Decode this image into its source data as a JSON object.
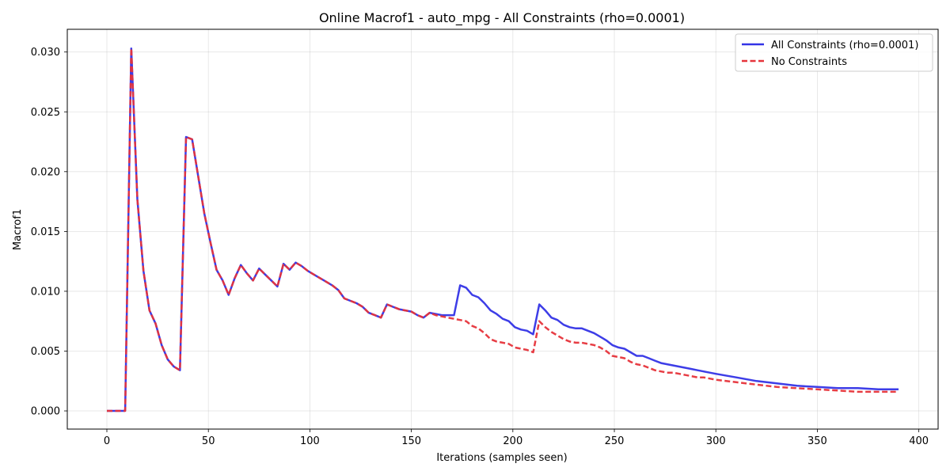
{
  "chart_data": {
    "type": "line",
    "title": "Online Macrof1 - auto_mpg - All Constraints (rho=0.0001)",
    "xlabel": "Iterations (samples seen)",
    "ylabel": "Macrof1",
    "xlim": [
      -19.5,
      409.5
    ],
    "ylim": [
      -0.00152,
      0.0319
    ],
    "xticks": [
      0,
      50,
      100,
      150,
      200,
      250,
      300,
      350,
      400
    ],
    "xtick_labels": [
      "0",
      "50",
      "100",
      "150",
      "200",
      "250",
      "300",
      "350",
      "400"
    ],
    "yticks": [
      0,
      0.005,
      0.01,
      0.015,
      0.02,
      0.025,
      0.03
    ],
    "ytick_labels": [
      "0.000",
      "0.005",
      "0.010",
      "0.015",
      "0.020",
      "0.025",
      "0.030"
    ],
    "grid": true,
    "legend_position": "top-right",
    "series": [
      {
        "name": "All Constraints (rho=0.0001)",
        "color": "#3333e6",
        "style": "solid",
        "x": [
          0,
          3,
          6,
          9,
          12,
          15,
          18,
          21,
          24,
          27,
          30,
          33,
          36,
          39,
          42,
          45,
          48,
          51,
          54,
          57,
          60,
          63,
          66,
          69,
          72,
          75,
          78,
          81,
          84,
          87,
          90,
          93,
          96,
          99,
          102,
          105,
          108,
          111,
          114,
          117,
          120,
          123,
          126,
          129,
          132,
          135,
          138,
          141,
          144,
          147,
          150,
          153,
          156,
          159,
          162,
          165,
          168,
          171,
          174,
          177,
          180,
          183,
          186,
          189,
          192,
          195,
          198,
          201,
          204,
          207,
          210,
          213,
          216,
          219,
          222,
          225,
          228,
          231,
          234,
          237,
          240,
          243,
          246,
          249,
          252,
          255,
          258,
          261,
          264,
          267,
          270,
          273,
          276,
          279,
          282,
          285,
          288,
          291,
          294,
          297,
          300,
          310,
          320,
          330,
          340,
          350,
          360,
          370,
          380,
          390
        ],
        "values": [
          0,
          0,
          0,
          0,
          0.0303,
          0.0177,
          0.0117,
          0.0084,
          0.0073,
          0.0055,
          0.0043,
          0.0037,
          0.0034,
          0.0229,
          0.0227,
          0.0196,
          0.0165,
          0.0141,
          0.0118,
          0.0109,
          0.0097,
          0.0111,
          0.0122,
          0.0115,
          0.0109,
          0.0119,
          0.0114,
          0.0109,
          0.0104,
          0.0123,
          0.0118,
          0.0124,
          0.0121,
          0.0117,
          0.0114,
          0.0111,
          0.0108,
          0.0105,
          0.0101,
          0.0094,
          0.0092,
          0.009,
          0.0087,
          0.0082,
          0.008,
          0.0078,
          0.0089,
          0.0087,
          0.0085,
          0.0084,
          0.0083,
          0.008,
          0.0078,
          0.0082,
          0.0081,
          0.008,
          0.008,
          0.008,
          0.0105,
          0.0103,
          0.0097,
          0.0095,
          0.009,
          0.0084,
          0.0081,
          0.0077,
          0.0075,
          0.007,
          0.0068,
          0.0067,
          0.0064,
          0.0089,
          0.0084,
          0.0078,
          0.0076,
          0.0072,
          0.007,
          0.0069,
          0.0069,
          0.0067,
          0.0065,
          0.0062,
          0.0059,
          0.0055,
          0.0053,
          0.0052,
          0.0049,
          0.0046,
          0.0046,
          0.0044,
          0.0042,
          0.004,
          0.0039,
          0.0038,
          0.0037,
          0.0036,
          0.0035,
          0.0034,
          0.0033,
          0.0032,
          0.0031,
          0.0028,
          0.0025,
          0.0023,
          0.0021,
          0.002,
          0.0019,
          0.0019,
          0.0018,
          0.0018
        ]
      },
      {
        "name": "No Constraints",
        "color": "#e6333a",
        "style": "dashed",
        "x": [
          0,
          3,
          6,
          9,
          12,
          15,
          18,
          21,
          24,
          27,
          30,
          33,
          36,
          39,
          42,
          45,
          48,
          51,
          54,
          57,
          60,
          63,
          66,
          69,
          72,
          75,
          78,
          81,
          84,
          87,
          90,
          93,
          96,
          99,
          102,
          105,
          108,
          111,
          114,
          117,
          120,
          123,
          126,
          129,
          132,
          135,
          138,
          141,
          144,
          147,
          150,
          153,
          156,
          159,
          162,
          165,
          168,
          171,
          174,
          177,
          180,
          183,
          186,
          189,
          192,
          195,
          198,
          201,
          204,
          207,
          210,
          213,
          216,
          219,
          222,
          225,
          228,
          231,
          234,
          237,
          240,
          243,
          246,
          249,
          252,
          255,
          258,
          261,
          264,
          267,
          270,
          273,
          276,
          279,
          282,
          285,
          288,
          291,
          294,
          297,
          300,
          310,
          320,
          330,
          340,
          350,
          360,
          370,
          380,
          390
        ],
        "values": [
          0,
          0,
          0,
          0,
          0.0303,
          0.0177,
          0.0117,
          0.0084,
          0.0073,
          0.0055,
          0.0043,
          0.0037,
          0.0034,
          0.0229,
          0.0227,
          0.0196,
          0.0165,
          0.0141,
          0.0118,
          0.0109,
          0.0097,
          0.0111,
          0.0122,
          0.0115,
          0.0109,
          0.0119,
          0.0114,
          0.0109,
          0.0104,
          0.0123,
          0.0118,
          0.0124,
          0.0121,
          0.0117,
          0.0114,
          0.0111,
          0.0108,
          0.0105,
          0.0101,
          0.0094,
          0.0092,
          0.009,
          0.0087,
          0.0082,
          0.008,
          0.0078,
          0.0089,
          0.0087,
          0.0085,
          0.0084,
          0.0083,
          0.008,
          0.0078,
          0.0082,
          0.008,
          0.0079,
          0.0078,
          0.0077,
          0.0076,
          0.0075,
          0.0071,
          0.0069,
          0.0065,
          0.006,
          0.0058,
          0.0057,
          0.0056,
          0.0053,
          0.0052,
          0.0051,
          0.0049,
          0.0075,
          0.007,
          0.0066,
          0.0063,
          0.006,
          0.0058,
          0.0057,
          0.0057,
          0.0056,
          0.0055,
          0.0053,
          0.005,
          0.0046,
          0.0045,
          0.0044,
          0.0041,
          0.0039,
          0.0038,
          0.0036,
          0.0034,
          0.0033,
          0.0032,
          0.0032,
          0.0031,
          0.003,
          0.0029,
          0.0028,
          0.0028,
          0.0027,
          0.0026,
          0.0024,
          0.0022,
          0.002,
          0.0019,
          0.0018,
          0.0017,
          0.0016,
          0.0016,
          0.0016
        ]
      }
    ]
  }
}
